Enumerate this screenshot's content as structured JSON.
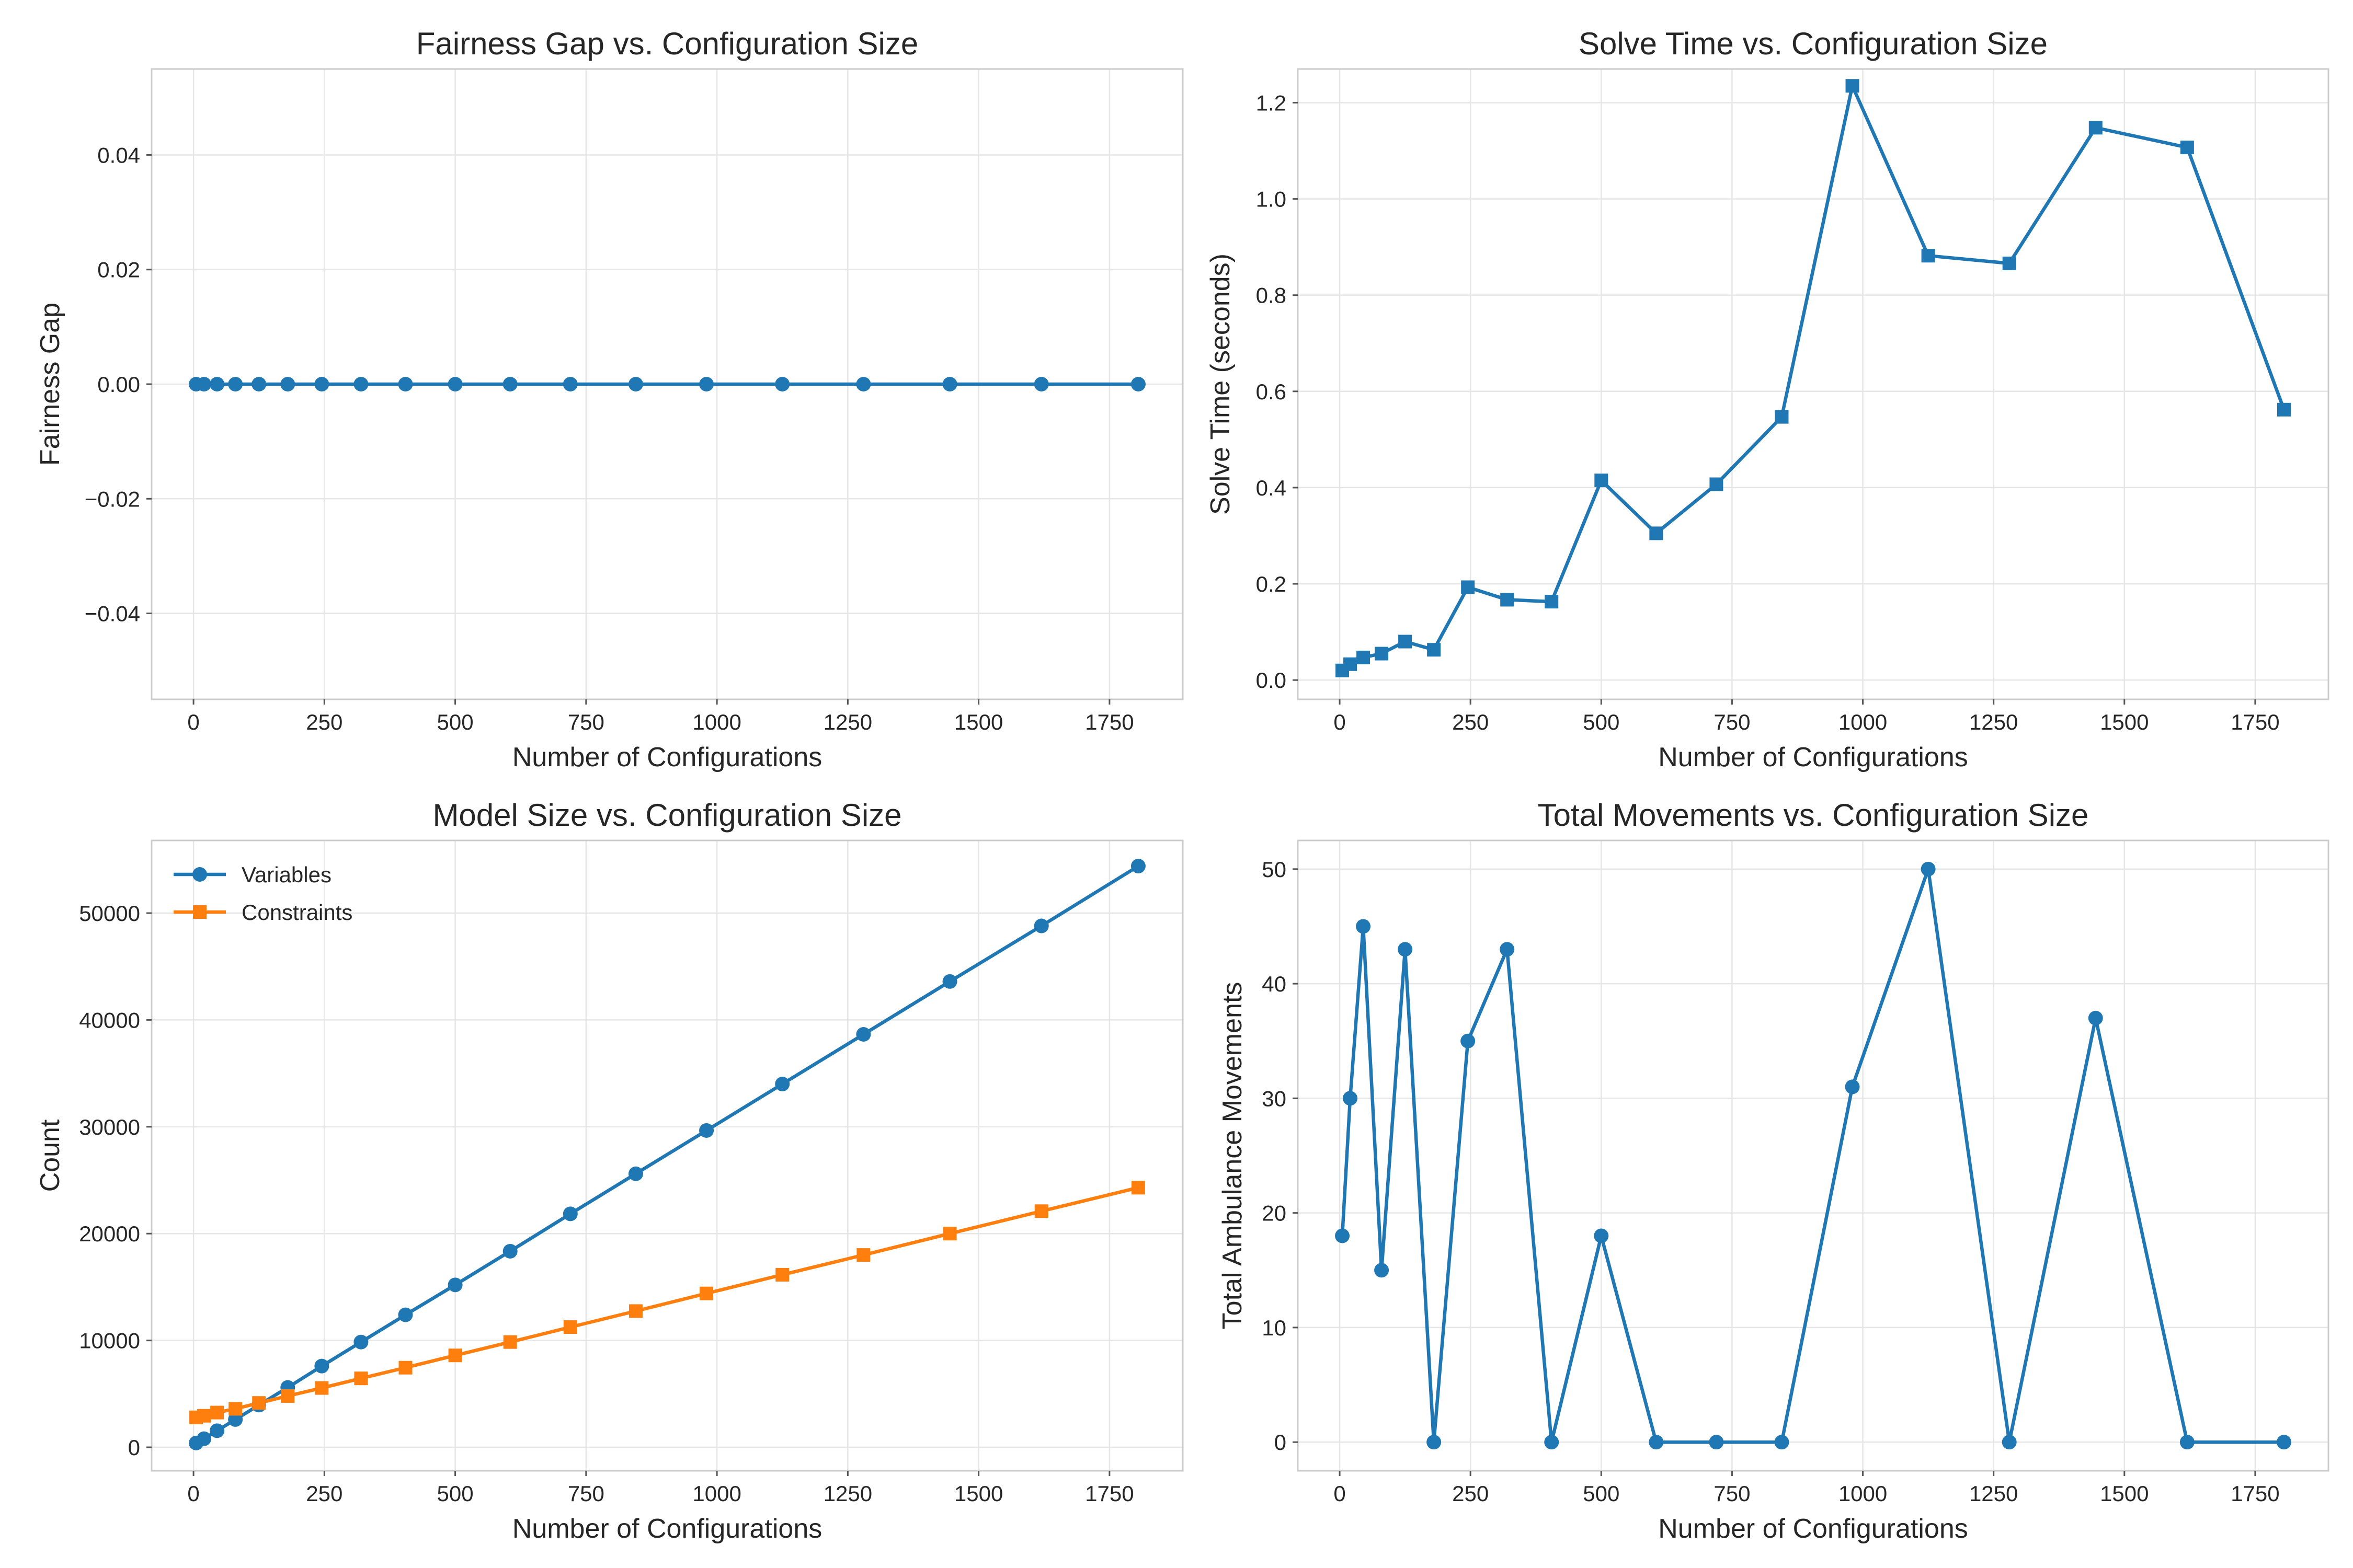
{
  "figure": {
    "background": "#ffffff"
  },
  "chart_data": [
    {
      "id": "fairness",
      "type": "line",
      "title": "Fairness Gap vs. Configuration Size",
      "xlabel": "Number of Configurations",
      "ylabel": "Fairness Gap",
      "xlim": [
        -80,
        1890
      ],
      "ylim": [
        -0.055,
        0.055
      ],
      "xticks": [
        0,
        250,
        500,
        750,
        1000,
        1250,
        1500,
        1750
      ],
      "yticks": [
        -0.04,
        -0.02,
        0.0,
        0.02,
        0.04
      ],
      "ytick_labels": [
        "−0.04",
        "−0.02",
        "0.00",
        "0.02",
        "0.04"
      ],
      "grid": true,
      "legend": null,
      "x": [
        5,
        20,
        45,
        80,
        125,
        180,
        245,
        320,
        405,
        500,
        605,
        720,
        845,
        980,
        1125,
        1280,
        1445,
        1620,
        1805
      ],
      "series": [
        {
          "values": [
            0,
            0,
            0,
            0,
            0,
            0,
            0,
            0,
            0,
            0,
            0,
            0,
            0,
            0,
            0,
            0,
            0,
            0,
            0
          ],
          "color": "#1f77b4",
          "marker": "circle"
        }
      ]
    },
    {
      "id": "solve-time",
      "type": "line",
      "title": "Solve Time vs. Configuration Size",
      "xlabel": "Number of Configurations",
      "ylabel": "Solve Time (seconds)",
      "xlim": [
        -80,
        1890
      ],
      "ylim": [
        -0.04,
        1.27
      ],
      "xticks": [
        0,
        250,
        500,
        750,
        1000,
        1250,
        1500,
        1750
      ],
      "yticks": [
        0.0,
        0.2,
        0.4,
        0.6,
        0.8,
        1.0,
        1.2
      ],
      "ytick_labels": [
        "0.0",
        "0.2",
        "0.4",
        "0.6",
        "0.8",
        "1.0",
        "1.2"
      ],
      "grid": true,
      "legend": null,
      "x": [
        5,
        20,
        45,
        80,
        125,
        180,
        245,
        320,
        405,
        500,
        605,
        720,
        845,
        980,
        1125,
        1280,
        1445,
        1620,
        1805
      ],
      "series": [
        {
          "values": [
            0.02,
            0.033,
            0.047,
            0.055,
            0.08,
            0.063,
            0.193,
            0.167,
            0.163,
            0.415,
            0.305,
            0.407,
            0.547,
            1.235,
            0.882,
            0.866,
            1.148,
            1.107,
            0.562
          ],
          "color": "#1f77b4",
          "marker": "square"
        }
      ]
    },
    {
      "id": "model-size",
      "type": "line",
      "title": "Model Size vs. Configuration Size",
      "xlabel": "Number of Configurations",
      "ylabel": "Count",
      "xlim": [
        -80,
        1890
      ],
      "ylim": [
        -2200,
        56800
      ],
      "xticks": [
        0,
        250,
        500,
        750,
        1000,
        1250,
        1500,
        1750
      ],
      "yticks": [
        0,
        10000,
        20000,
        30000,
        40000,
        50000
      ],
      "ytick_labels": [
        "0",
        "10000",
        "20000",
        "30000",
        "40000",
        "50000"
      ],
      "grid": true,
      "legend": "upper left",
      "x": [
        5,
        20,
        45,
        80,
        125,
        180,
        245,
        320,
        405,
        500,
        605,
        720,
        845,
        980,
        1125,
        1280,
        1445,
        1620,
        1805
      ],
      "series": [
        {
          "name": "Variables",
          "values": [
            400,
            800,
            1550,
            2600,
            3950,
            5600,
            7600,
            9850,
            12400,
            15200,
            18350,
            21850,
            25600,
            29650,
            34000,
            38650,
            43600,
            48800,
            54400
          ],
          "color": "#1f77b4",
          "marker": "circle"
        },
        {
          "name": "Constraints",
          "values": [
            2800,
            2950,
            3250,
            3600,
            4150,
            4800,
            5550,
            6450,
            7450,
            8600,
            9850,
            11250,
            12750,
            14400,
            16150,
            18000,
            20000,
            22100,
            24300
          ],
          "color": "#ff7f0e",
          "marker": "square"
        }
      ]
    },
    {
      "id": "movements",
      "type": "line",
      "title": "Total Movements vs. Configuration Size",
      "xlabel": "Number of Configurations",
      "ylabel": "Total Ambulance Movements",
      "xlim": [
        -80,
        1890
      ],
      "ylim": [
        -2.5,
        52.5
      ],
      "xticks": [
        0,
        250,
        500,
        750,
        1000,
        1250,
        1500,
        1750
      ],
      "yticks": [
        0,
        10,
        20,
        30,
        40,
        50
      ],
      "ytick_labels": [
        "0",
        "10",
        "20",
        "30",
        "40",
        "50"
      ],
      "grid": true,
      "legend": null,
      "x": [
        5,
        20,
        45,
        80,
        125,
        180,
        245,
        320,
        405,
        500,
        605,
        720,
        845,
        980,
        1125,
        1280,
        1445,
        1620,
        1805
      ],
      "series": [
        {
          "values": [
            18,
            30,
            45,
            15,
            43,
            0,
            35,
            43,
            0,
            18,
            0,
            0,
            0,
            31,
            50,
            0,
            37,
            0,
            0
          ],
          "color": "#1f77b4",
          "marker": "circle"
        }
      ]
    }
  ]
}
